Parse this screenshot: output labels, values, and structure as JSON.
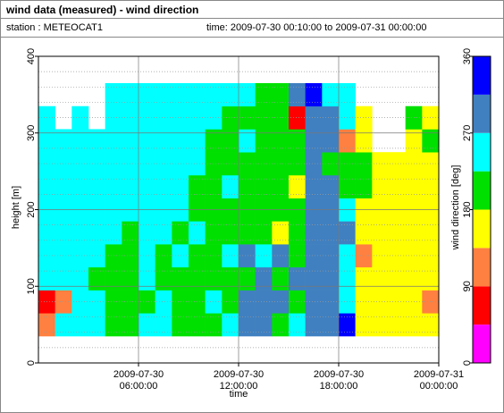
{
  "title": "wind data (measured) - wind direction",
  "station": "station : METEOCAT1",
  "time_range": "time: 2009-07-30 00:10:00 to 2009-07-31 00:00:00",
  "chart_data": {
    "type": "heatmap",
    "xlabel": "time",
    "ylabel": "height [m]",
    "xlim": [
      0,
      24
    ],
    "ylim": [
      0,
      400
    ],
    "xticks": [
      {
        "value": 6,
        "label": [
          "2009-07-30",
          "06:00:00"
        ]
      },
      {
        "value": 12,
        "label": [
          "2009-07-30",
          "12:00:00"
        ]
      },
      {
        "value": 18,
        "label": [
          "2009-07-30",
          "18:00:00"
        ]
      },
      {
        "value": 24,
        "label": [
          "2009-07-31",
          "00:00:00"
        ]
      }
    ],
    "yticks": [
      0,
      100,
      200,
      300,
      400
    ],
    "yminorticks": [
      20,
      40,
      60,
      80,
      120,
      140,
      160,
      180,
      220,
      240,
      260,
      280,
      320,
      340,
      360,
      380
    ],
    "grid": true,
    "x_edges": [
      0,
      1,
      2,
      3,
      4,
      5,
      6,
      7,
      8,
      9,
      10,
      11,
      12,
      13,
      14,
      15,
      16,
      17,
      18,
      19,
      20,
      21,
      22,
      23,
      24
    ],
    "y_edges": [
      35,
      65,
      95,
      125,
      155,
      185,
      215,
      245,
      275,
      305,
      335,
      365
    ],
    "z": [
      [
        120,
        70,
        250,
        250,
        250,
        250,
        250,
        250,
        250,
        250,
        null
      ],
      [
        250,
        120,
        250,
        250,
        250,
        250,
        250,
        250,
        250,
        null,
        null
      ],
      [
        250,
        250,
        250,
        250,
        250,
        250,
        250,
        250,
        250,
        250,
        null
      ],
      [
        250,
        250,
        200,
        250,
        250,
        250,
        250,
        250,
        250,
        null,
        null
      ],
      [
        200,
        200,
        200,
        200,
        250,
        250,
        250,
        250,
        250,
        250,
        250
      ],
      [
        200,
        200,
        200,
        200,
        200,
        250,
        250,
        250,
        250,
        250,
        250
      ],
      [
        250,
        200,
        250,
        250,
        250,
        250,
        250,
        250,
        250,
        250,
        250
      ],
      [
        250,
        250,
        200,
        200,
        250,
        250,
        250,
        250,
        250,
        250,
        250
      ],
      [
        200,
        200,
        200,
        250,
        200,
        250,
        250,
        250,
        250,
        250,
        250
      ],
      [
        200,
        200,
        200,
        200,
        250,
        200,
        200,
        250,
        250,
        250,
        250
      ],
      [
        200,
        250,
        200,
        200,
        200,
        200,
        200,
        200,
        200,
        250,
        250
      ],
      [
        250,
        200,
        200,
        250,
        200,
        200,
        250,
        200,
        200,
        200,
        250
      ],
      [
        290,
        290,
        200,
        290,
        200,
        200,
        200,
        200,
        250,
        200,
        250
      ],
      [
        290,
        290,
        290,
        250,
        200,
        200,
        200,
        200,
        200,
        200,
        200
      ],
      [
        200,
        290,
        200,
        290,
        160,
        200,
        200,
        200,
        200,
        200,
        200
      ],
      [
        250,
        200,
        290,
        200,
        200,
        200,
        160,
        200,
        200,
        70,
        290
      ],
      [
        290,
        290,
        290,
        290,
        290,
        290,
        290,
        290,
        290,
        290,
        330
      ],
      [
        290,
        290,
        290,
        290,
        290,
        290,
        290,
        200,
        290,
        290,
        250
      ],
      [
        330,
        250,
        250,
        250,
        290,
        250,
        200,
        200,
        120,
        250,
        250
      ],
      [
        160,
        160,
        160,
        120,
        160,
        160,
        200,
        200,
        160,
        160,
        null
      ],
      [
        160,
        160,
        160,
        160,
        160,
        160,
        160,
        160,
        null,
        null,
        null
      ],
      [
        160,
        160,
        160,
        160,
        160,
        160,
        160,
        160,
        null,
        null,
        null
      ],
      [
        160,
        160,
        160,
        160,
        160,
        160,
        160,
        160,
        160,
        200,
        null
      ],
      [
        160,
        120,
        160,
        160,
        160,
        160,
        160,
        160,
        200,
        160,
        null
      ]
    ],
    "colorbar": {
      "label": "wind direction [deg]",
      "clim": [
        0,
        360
      ],
      "ticks": [
        0,
        90,
        180,
        270,
        360
      ],
      "colors": [
        "#ff00ff",
        "#ff0000",
        "#ff8040",
        "#ffff00",
        "#00e000",
        "#00ffff",
        "#4080c0",
        "#0000ff"
      ]
    }
  }
}
